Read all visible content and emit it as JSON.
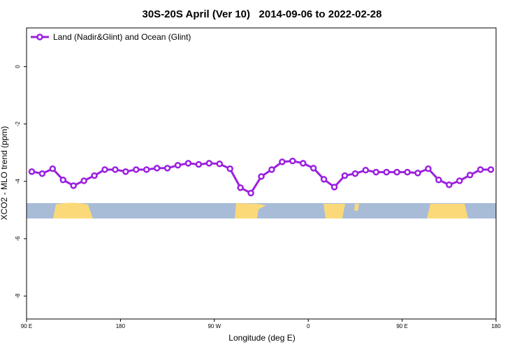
{
  "chart_data": {
    "type": "line",
    "title": "30S-20S April (Ver 10)   2014-09-06 to 2022-02-28",
    "x_label": "Longitude (deg E)",
    "y_label": "XCO2 - MLO trend (ppm)",
    "xlim": [
      90,
      540
    ],
    "xticks": [
      {
        "value": 90,
        "label": "90 E"
      },
      {
        "value": 180,
        "label": "180"
      },
      {
        "value": 270,
        "label": "90 W"
      },
      {
        "value": 360,
        "label": "0"
      },
      {
        "value": 450,
        "label": "90 E"
      },
      {
        "value": 540,
        "label": "180"
      }
    ],
    "ylim": [
      -8.8,
      1.35
    ],
    "yticks": [
      0,
      -2,
      -4,
      -6,
      -8
    ],
    "x": [
      95,
      105,
      115,
      125,
      135,
      145,
      155,
      165,
      175,
      185,
      195,
      205,
      215,
      225,
      235,
      245,
      255,
      265,
      275,
      285,
      295,
      305,
      315,
      325,
      335,
      345,
      355,
      365,
      375,
      385,
      395,
      405,
      415,
      425,
      435,
      445,
      455,
      465,
      475,
      485,
      495,
      505,
      515,
      525,
      535
    ],
    "series": [
      {
        "name": "Land (Nadir&Glint) and Ocean (Glint)",
        "color": "#9b1fe0",
        "values": [
          -3.66,
          -3.73,
          -3.56,
          -3.95,
          -4.15,
          -3.98,
          -3.8,
          -3.59,
          -3.59,
          -3.66,
          -3.59,
          -3.59,
          -3.54,
          -3.54,
          -3.44,
          -3.37,
          -3.41,
          -3.37,
          -3.39,
          -3.56,
          -4.22,
          -4.41,
          -3.83,
          -3.59,
          -3.32,
          -3.29,
          -3.37,
          -3.54,
          -3.93,
          -4.2,
          -3.8,
          -3.73,
          -3.61,
          -3.68,
          -3.68,
          -3.68,
          -3.68,
          -3.71,
          -3.56,
          -3.95,
          -4.12,
          -3.98,
          -3.78,
          -3.59,
          -3.59
        ]
      }
    ],
    "legend": "top-left"
  }
}
